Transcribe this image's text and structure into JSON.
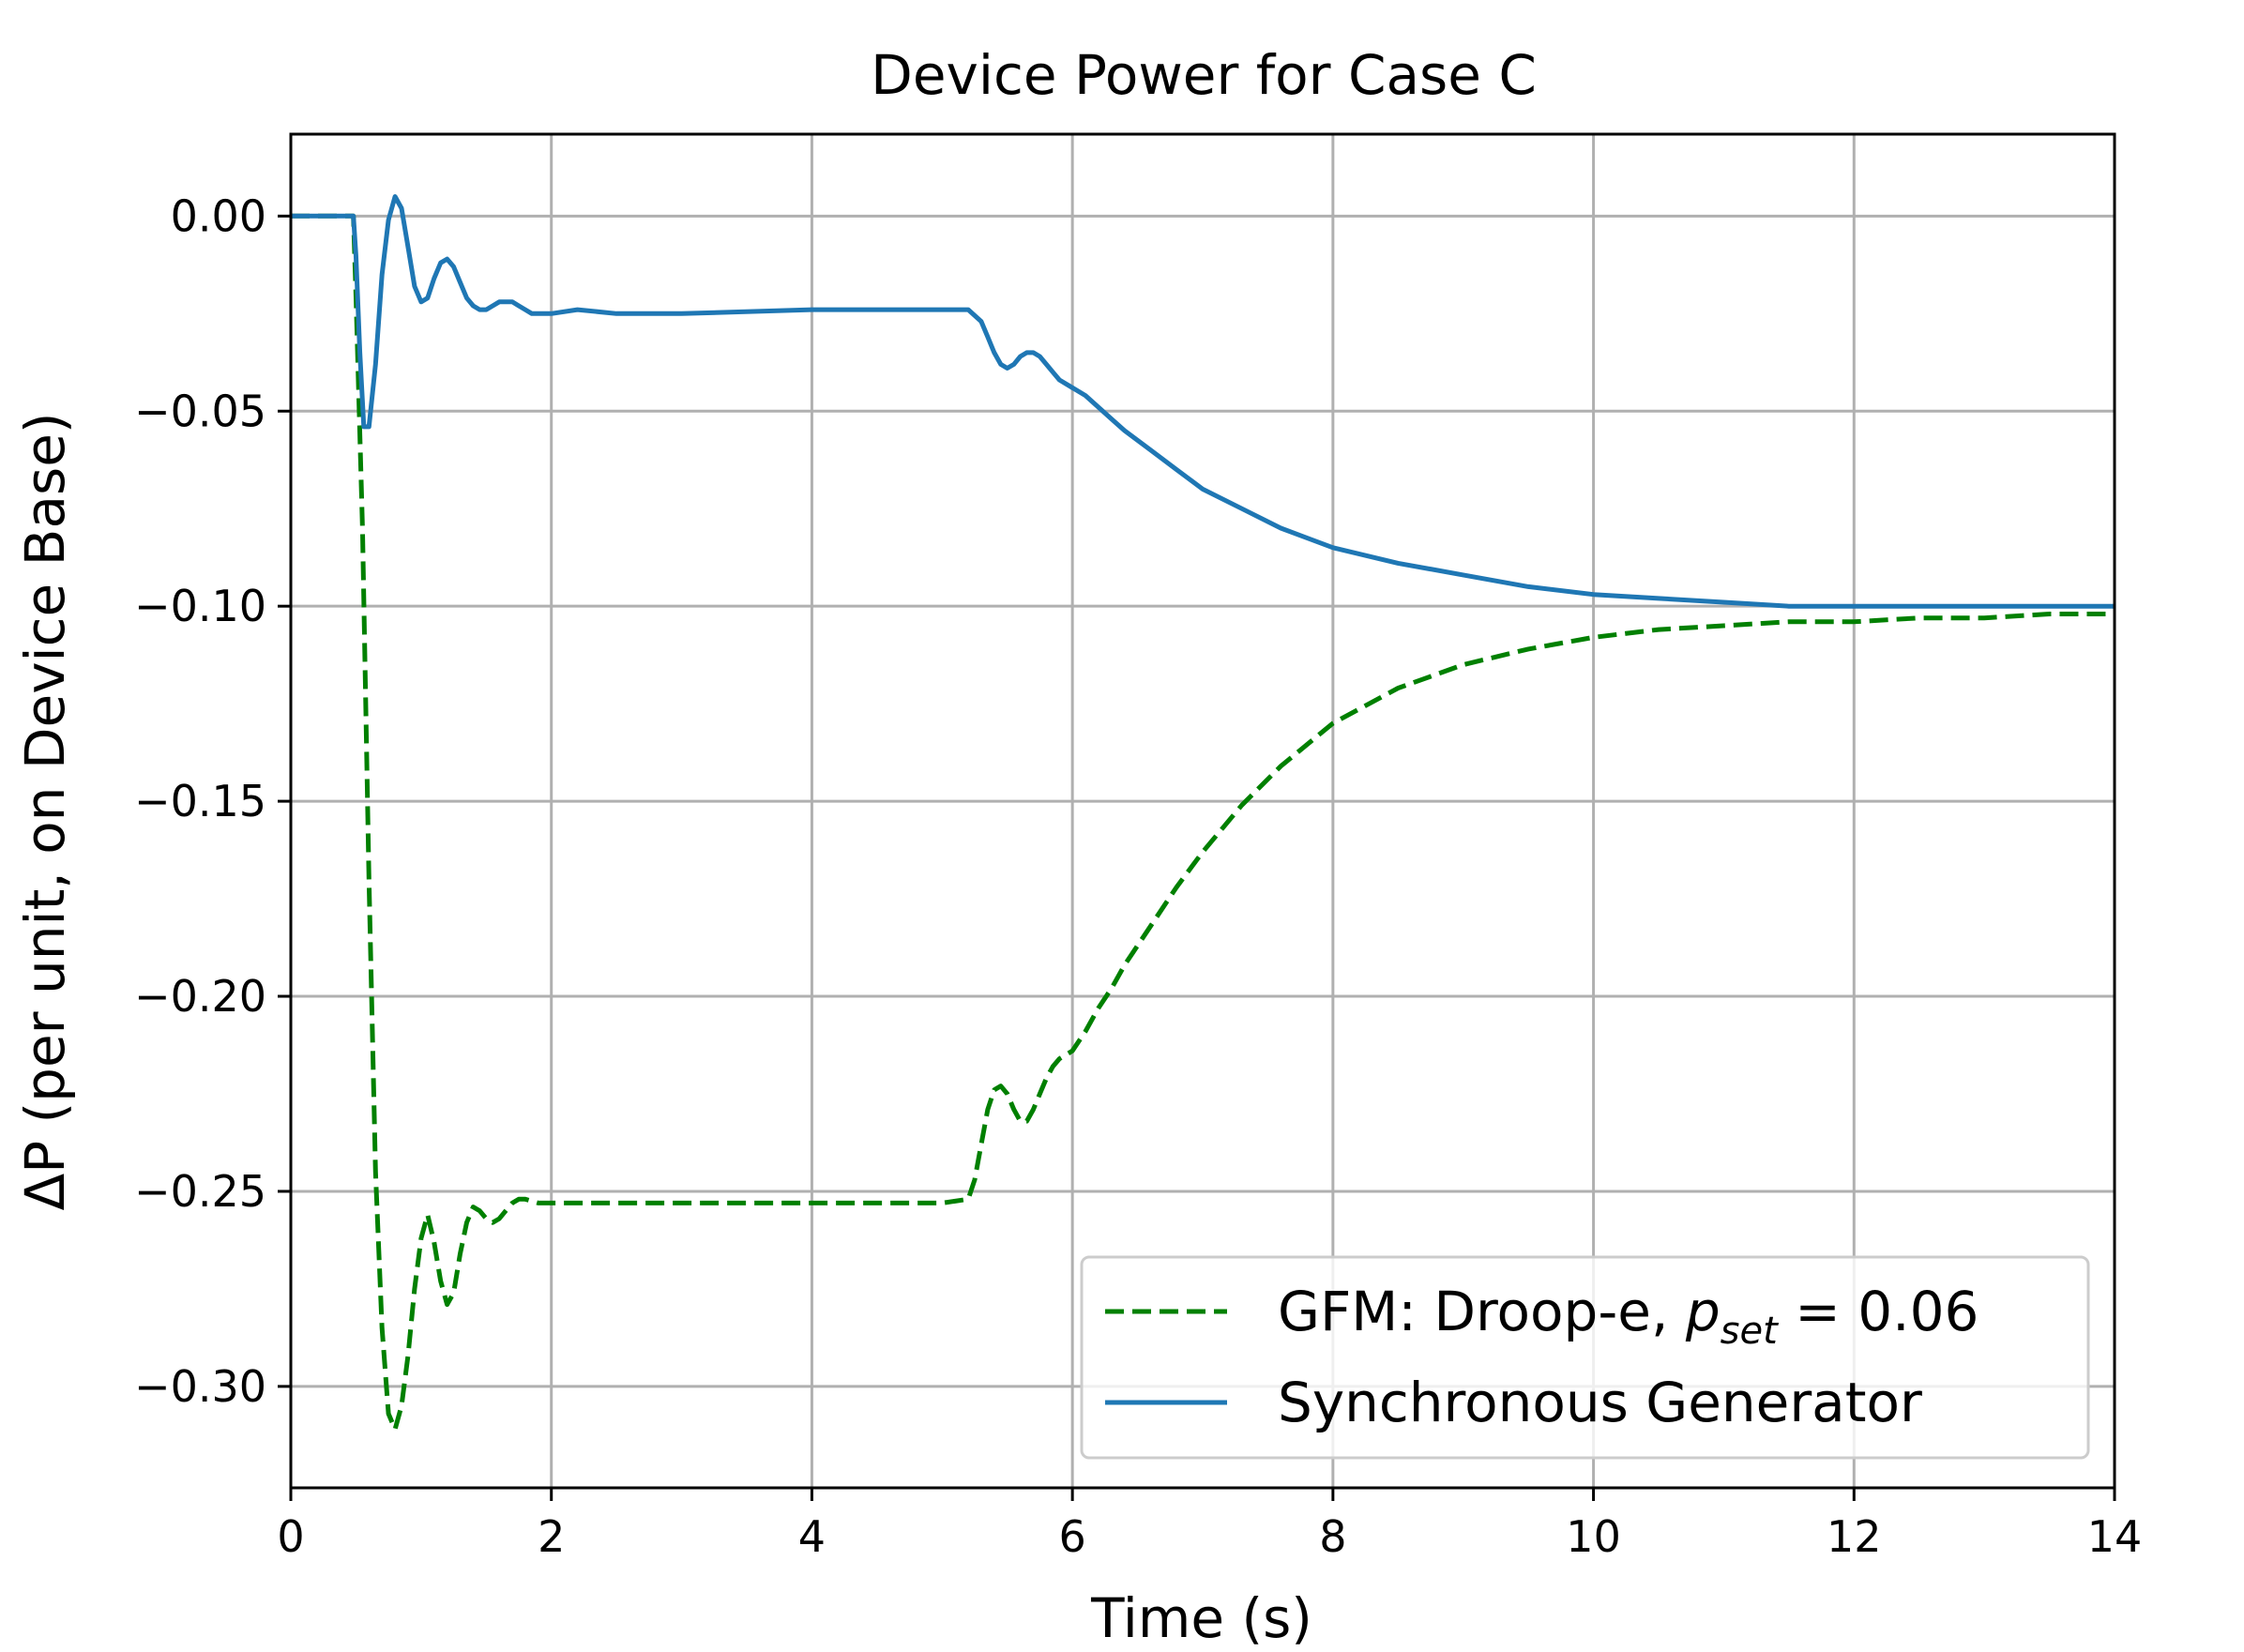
{
  "chart_data": {
    "type": "line",
    "title": "Device Power for Case C",
    "xlabel": "Time (s)",
    "ylabel": "ΔP (per unit, on Device Base)",
    "xlim": [
      0,
      14
    ],
    "ylim": [
      -0.326,
      0.021
    ],
    "x_ticks": [
      0,
      2,
      4,
      6,
      8,
      10,
      12,
      14
    ],
    "x_tick_labels": [
      "0",
      "2",
      "4",
      "6",
      "8",
      "10",
      "12",
      "14"
    ],
    "y_ticks": [
      0.0,
      -0.05,
      -0.1,
      -0.15,
      -0.2,
      -0.25,
      -0.3
    ],
    "y_tick_labels": [
      "0.00",
      "−0.05",
      "−0.10",
      "−0.15",
      "−0.20",
      "−0.25",
      "−0.30"
    ],
    "grid": true,
    "legend_position": "lower-right",
    "series": [
      {
        "name": "GFM: Droop-e, p_set = 0.06",
        "legend_prefix": "GFM: Droop-e, ",
        "legend_var": "p",
        "legend_sub": "set",
        "legend_suffix": " = 0.06",
        "color": "#008000",
        "style": "dashed",
        "x": [
          0,
          0.48,
          0.5,
          0.55,
          0.6,
          0.65,
          0.7,
          0.75,
          0.8,
          0.85,
          0.9,
          0.95,
          1.0,
          1.05,
          1.1,
          1.15,
          1.2,
          1.25,
          1.3,
          1.35,
          1.4,
          1.45,
          1.5,
          1.55,
          1.6,
          1.65,
          1.7,
          1.75,
          1.8,
          1.9,
          2.0,
          2.1,
          2.5,
          3.0,
          4.0,
          4.5,
          5.0,
          5.2,
          5.25,
          5.3,
          5.35,
          5.4,
          5.45,
          5.5,
          5.55,
          5.6,
          5.65,
          5.7,
          5.75,
          5.8,
          5.85,
          5.9,
          6.0,
          6.1,
          6.2,
          6.3,
          6.4,
          6.6,
          6.8,
          7.0,
          7.3,
          7.6,
          8.0,
          8.5,
          9.0,
          9.5,
          10.0,
          10.5,
          11.0,
          11.5,
          12.0,
          12.5,
          13.0,
          13.5,
          14.0
        ],
        "y": [
          0.0,
          0.0,
          -0.02,
          -0.08,
          -0.17,
          -0.245,
          -0.285,
          -0.307,
          -0.311,
          -0.305,
          -0.292,
          -0.275,
          -0.262,
          -0.256,
          -0.263,
          -0.273,
          -0.279,
          -0.276,
          -0.266,
          -0.258,
          -0.254,
          -0.255,
          -0.257,
          -0.258,
          -0.257,
          -0.255,
          -0.253,
          -0.252,
          -0.252,
          -0.253,
          -0.253,
          -0.253,
          -0.253,
          -0.253,
          -0.253,
          -0.253,
          -0.253,
          -0.252,
          -0.247,
          -0.238,
          -0.229,
          -0.224,
          -0.223,
          -0.225,
          -0.229,
          -0.232,
          -0.232,
          -0.229,
          -0.225,
          -0.221,
          -0.218,
          -0.216,
          -0.214,
          -0.209,
          -0.203,
          -0.198,
          -0.192,
          -0.182,
          -0.172,
          -0.163,
          -0.151,
          -0.141,
          -0.13,
          -0.121,
          -0.115,
          -0.111,
          -0.108,
          -0.106,
          -0.105,
          -0.104,
          -0.104,
          -0.103,
          -0.103,
          -0.102,
          -0.102
        ]
      },
      {
        "name": "Synchronous Generator",
        "color": "#1f77b4",
        "style": "solid",
        "x": [
          0,
          0.48,
          0.5,
          0.53,
          0.56,
          0.6,
          0.65,
          0.7,
          0.75,
          0.8,
          0.85,
          0.9,
          0.95,
          1.0,
          1.05,
          1.1,
          1.15,
          1.2,
          1.25,
          1.3,
          1.35,
          1.4,
          1.45,
          1.5,
          1.55,
          1.6,
          1.65,
          1.7,
          1.75,
          1.8,
          1.85,
          1.9,
          2.0,
          2.2,
          2.5,
          3.0,
          4.0,
          5.0,
          5.2,
          5.3,
          5.35,
          5.4,
          5.45,
          5.5,
          5.55,
          5.6,
          5.65,
          5.7,
          5.75,
          5.8,
          5.85,
          5.9,
          6.0,
          6.1,
          6.2,
          6.3,
          6.4,
          6.6,
          6.8,
          7.0,
          7.3,
          7.6,
          8.0,
          8.5,
          9.0,
          9.5,
          10.0,
          10.5,
          11.0,
          11.5,
          12.0,
          12.5,
          13.0,
          13.5,
          14.0
        ],
        "y": [
          0.0,
          0.0,
          -0.01,
          -0.035,
          -0.054,
          -0.054,
          -0.038,
          -0.015,
          -0.001,
          0.005,
          0.002,
          -0.008,
          -0.018,
          -0.022,
          -0.021,
          -0.016,
          -0.012,
          -0.011,
          -0.013,
          -0.017,
          -0.021,
          -0.023,
          -0.024,
          -0.024,
          -0.023,
          -0.022,
          -0.022,
          -0.022,
          -0.023,
          -0.024,
          -0.025,
          -0.025,
          -0.025,
          -0.024,
          -0.025,
          -0.025,
          -0.024,
          -0.024,
          -0.024,
          -0.027,
          -0.031,
          -0.035,
          -0.038,
          -0.039,
          -0.038,
          -0.036,
          -0.035,
          -0.035,
          -0.036,
          -0.038,
          -0.04,
          -0.042,
          -0.044,
          -0.046,
          -0.049,
          -0.052,
          -0.055,
          -0.06,
          -0.065,
          -0.07,
          -0.075,
          -0.08,
          -0.085,
          -0.089,
          -0.092,
          -0.095,
          -0.097,
          -0.098,
          -0.099,
          -0.1,
          -0.1,
          -0.1,
          -0.1,
          -0.1,
          -0.1
        ]
      }
    ]
  }
}
